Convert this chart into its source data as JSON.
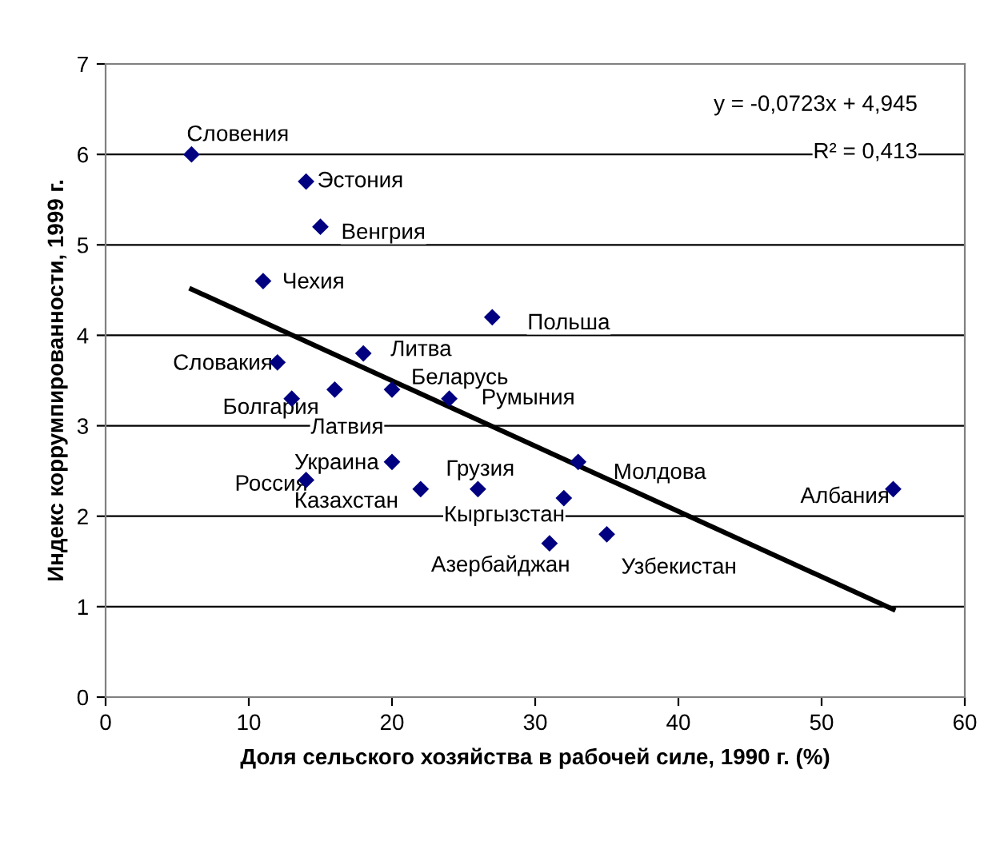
{
  "chart_data": {
    "type": "scatter",
    "xlabel": "Доля сельского хозяйства в рабочей силе, 1990 г. (%)",
    "ylabel": "Индекс коррумпированности, 1999 г.",
    "xlim": [
      0,
      60
    ],
    "xticks": [
      0,
      10,
      20,
      30,
      40,
      50,
      60
    ],
    "ylim": [
      0,
      7
    ],
    "yticks": [
      0,
      1,
      2,
      3,
      4,
      5,
      6,
      7
    ],
    "grid": "y",
    "legend": false,
    "marker": "diamond",
    "series": [
      {
        "color": "#000080",
        "x": [
          6,
          14,
          15,
          11,
          27,
          18,
          12,
          13,
          16,
          20,
          24,
          20,
          14,
          22,
          26,
          33,
          32,
          31,
          35,
          55
        ],
        "values": [
          6.0,
          5.7,
          5.2,
          4.6,
          4.2,
          3.8,
          3.7,
          3.3,
          3.4,
          3.4,
          3.3,
          2.6,
          2.4,
          2.3,
          2.3,
          2.6,
          2.2,
          1.7,
          1.8,
          2.3
        ]
      },
      {
        "type": "line",
        "color": "#000000",
        "line_style": "solid",
        "marker": "none",
        "x": [
          6,
          55
        ],
        "values": [
          4.51,
          0.97
        ]
      }
    ],
    "annotations": [
      {
        "text": "Словения",
        "x": 6,
        "y": 6.0
      },
      {
        "text": "Эстония",
        "x": 14,
        "y": 5.7
      },
      {
        "text": "Венгрия",
        "x": 15,
        "y": 5.2
      },
      {
        "text": "Чехия",
        "x": 11,
        "y": 4.6
      },
      {
        "text": "Польша",
        "x": 27,
        "y": 4.2
      },
      {
        "text": "Литва",
        "x": 18,
        "y": 3.8
      },
      {
        "text": "Словакия",
        "x": 12,
        "y": 3.7
      },
      {
        "text": "Болгария",
        "x": 13,
        "y": 3.3
      },
      {
        "text": "Латвия",
        "x": 16,
        "y": 3.4
      },
      {
        "text": "Беларусь",
        "x": 20,
        "y": 3.4
      },
      {
        "text": "Румыния",
        "x": 24,
        "y": 3.3
      },
      {
        "text": "Украина",
        "x": 20,
        "y": 2.6
      },
      {
        "text": "Россия",
        "x": 14,
        "y": 2.4
      },
      {
        "text": "Казахстан",
        "x": 22,
        "y": 2.3
      },
      {
        "text": "Грузия",
        "x": 26,
        "y": 2.3
      },
      {
        "text": "Молдова",
        "x": 33,
        "y": 2.6
      },
      {
        "text": "Кыргызстан",
        "x": 32,
        "y": 2.2
      },
      {
        "text": "Азербайджан",
        "x": 31,
        "y": 1.7
      },
      {
        "text": "Узбекистан",
        "x": 35,
        "y": 1.8
      },
      {
        "text": "Албания",
        "x": 55,
        "y": 2.3
      },
      "y = -0,0723x + 4,945",
      "R² = 0,413"
    ]
  }
}
